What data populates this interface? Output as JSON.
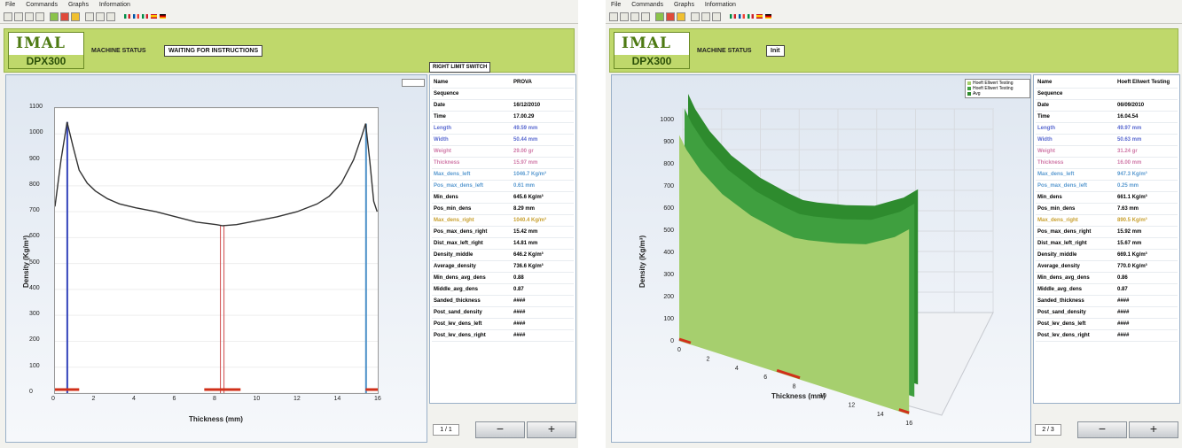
{
  "menu": [
    "File",
    "Commands",
    "Graphs",
    "Information"
  ],
  "windows": [
    {
      "logo_brand": "IMAL",
      "logo_model": "DPX300",
      "machine_status_label": "MACHINE STATUS",
      "machine_status_value": "WAITING FOR INSTRUCTIONS",
      "limit_switch": "RIGHT LIMIT SWITCH",
      "info": [
        {
          "k": "Name",
          "v": "PROVA"
        },
        {
          "k": "Sequence",
          "v": ""
        },
        {
          "k": "Date",
          "v": "16/12/2010"
        },
        {
          "k": "Time",
          "v": "17.00.29"
        },
        {
          "k": "Length",
          "v": "49.59 mm"
        },
        {
          "k": "Width",
          "v": "50.44 mm"
        },
        {
          "k": "Weight",
          "v": "29.00 gr"
        },
        {
          "k": "Thickness",
          "v": "15.97 mm"
        },
        {
          "k": "Max_dens_left",
          "v": "1046.7 Kg/m³"
        },
        {
          "k": "Pos_max_dens_left",
          "v": "0.61 mm"
        },
        {
          "k": "Min_dens",
          "v": "645.6 Kg/m³"
        },
        {
          "k": "Pos_min_dens",
          "v": "8.29 mm"
        },
        {
          "k": "Max_dens_right",
          "v": "1040.4 Kg/m³"
        },
        {
          "k": "Pos_max_dens_right",
          "v": "15.42 mm"
        },
        {
          "k": "Dist_max_left_right",
          "v": "14.81 mm"
        },
        {
          "k": "Density_middle",
          "v": "646.2 Kg/m³"
        },
        {
          "k": "Average_density",
          "v": "736.6 Kg/m³"
        },
        {
          "k": "Min_dens_avg_dens",
          "v": "0.88"
        },
        {
          "k": "Middle_avg_dens",
          "v": "0.87"
        },
        {
          "k": "Sanded_thickness",
          "v": "####"
        },
        {
          "k": "Post_sand_density",
          "v": "####"
        },
        {
          "k": "Post_lev_dens_left",
          "v": "####"
        },
        {
          "k": "Post_lev_dens_right",
          "v": "####"
        }
      ],
      "pager": "1 / 1",
      "minus": "−",
      "plus": "+"
    },
    {
      "logo_brand": "IMAL",
      "logo_model": "DPX300",
      "machine_status_label": "MACHINE STATUS",
      "machine_status_value": "Init",
      "info": [
        {
          "k": "Name",
          "v": "Hoeft Ellwert Testing"
        },
        {
          "k": "Sequence",
          "v": ""
        },
        {
          "k": "Date",
          "v": "06/09/2010"
        },
        {
          "k": "Time",
          "v": "16.04.54"
        },
        {
          "k": "Length",
          "v": "49.97 mm"
        },
        {
          "k": "Width",
          "v": "50.63 mm"
        },
        {
          "k": "Weight",
          "v": "31.24 gr"
        },
        {
          "k": "Thickness",
          "v": "16.00 mm"
        },
        {
          "k": "Max_dens_left",
          "v": "947.3 Kg/m³"
        },
        {
          "k": "Pos_max_dens_left",
          "v": "0.25 mm"
        },
        {
          "k": "Min_dens",
          "v": "661.1 Kg/m³"
        },
        {
          "k": "Pos_min_dens",
          "v": "7.63 mm"
        },
        {
          "k": "Max_dens_right",
          "v": "890.5 Kg/m³"
        },
        {
          "k": "Pos_max_dens_right",
          "v": "15.92 mm"
        },
        {
          "k": "Dist_max_left_right",
          "v": "15.67 mm"
        },
        {
          "k": "Density_middle",
          "v": "669.1 Kg/m³"
        },
        {
          "k": "Average_density",
          "v": "770.0 Kg/m³"
        },
        {
          "k": "Min_dens_avg_dens",
          "v": "0.86"
        },
        {
          "k": "Middle_avg_dens",
          "v": "0.87"
        },
        {
          "k": "Sanded_thickness",
          "v": "####"
        },
        {
          "k": "Post_sand_density",
          "v": "####"
        },
        {
          "k": "Post_lev_dens_left",
          "v": "####"
        },
        {
          "k": "Post_lev_dens_right",
          "v": "####"
        }
      ],
      "legend": [
        "Hoeft Ellwert Testing",
        "Hoeft Ellwert Testing",
        "Avg"
      ],
      "pager": "2 / 3",
      "minus": "−",
      "plus": "+"
    }
  ],
  "colors": {
    "header_green": "#bfd86b",
    "profile_line": "#333333",
    "left_peak_line": "#3344bb",
    "right_peak_line": "#4a90c8",
    "min_line": "#d04a4a",
    "marker_red": "#d0301a",
    "surface_light": "#a6cf6e",
    "surface_dark": "#2e8b2e"
  },
  "chart_data": [
    {
      "type": "line",
      "title": "",
      "xlabel": "Thickness (mm)",
      "ylabel": "Density (Kg/m³)",
      "xlim": [
        0,
        16
      ],
      "ylim": [
        0,
        1100
      ],
      "x_ticks": [
        0,
        2,
        4,
        6,
        8,
        10,
        12,
        14,
        16
      ],
      "y_ticks": [
        0,
        100,
        200,
        300,
        400,
        500,
        600,
        700,
        800,
        900,
        1000,
        1100
      ],
      "x": [
        0,
        0.3,
        0.6,
        0.9,
        1.2,
        1.6,
        2.0,
        2.6,
        3.2,
        4.0,
        5.0,
        6.0,
        7.0,
        8.0,
        8.3,
        9.0,
        10.0,
        11.0,
        12.0,
        13.0,
        13.6,
        14.2,
        14.8,
        15.2,
        15.4,
        15.6,
        15.8,
        15.97
      ],
      "values": [
        720,
        900,
        1046,
        950,
        860,
        810,
        780,
        750,
        730,
        715,
        700,
        680,
        660,
        650,
        646,
        650,
        665,
        680,
        700,
        730,
        760,
        810,
        900,
        990,
        1040,
        900,
        740,
        700
      ],
      "markers": [
        0.61,
        8.29,
        15.42
      ]
    },
    {
      "type": "area",
      "title": "",
      "xlabel": "Thickness (mm)",
      "ylabel": "Density (Kg/m³)",
      "x_ticks": [
        0,
        2,
        4,
        6,
        8,
        10,
        12,
        14,
        16
      ],
      "y_ticks": [
        0,
        100,
        200,
        300,
        400,
        500,
        600,
        700,
        800,
        900,
        1000
      ]
    }
  ]
}
